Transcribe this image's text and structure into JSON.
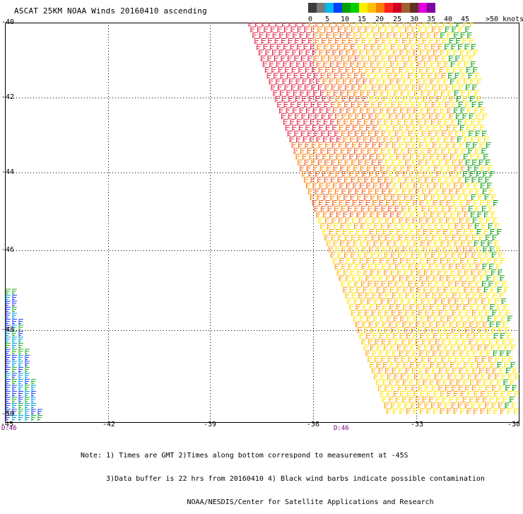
{
  "title": "ASCAT 25KM NOAA Winds 20160410 ascending",
  "color_scale": {
    "colors": [
      "#3c3c3c",
      "#7a7a7a",
      "#00b7f0",
      "#0040ff",
      "#00a000",
      "#00d000",
      "#fff000",
      "#ffc000",
      "#ff8000",
      "#ff2020",
      "#d00020",
      "#a06030",
      "#603020",
      "#e000e0",
      "#8000a0"
    ],
    "labels": [
      "0",
      "5",
      "10",
      "15",
      "20",
      "25",
      "30",
      "35",
      "40",
      "45"
    ],
    "units": ">50 knots"
  },
  "latitude_labels": [
    "-40",
    "-42",
    "-44",
    "-46",
    "-48",
    "-50"
  ],
  "longitude_labels": [
    "-45",
    "-42",
    "-39",
    "-36",
    "-33",
    "-30"
  ],
  "time_labels": [
    "D:46",
    "D:46"
  ],
  "notes": [
    "Note: 1) Times are GMT 2)Times along bottom correspond to measurement at -45S",
    "      3)Data buffer is 22 hrs from 20160410 4) Black wind barbs indicate possible contamination",
    "                         NOAA/NESDIS/Center for Satellite Applications and Research"
  ]
}
